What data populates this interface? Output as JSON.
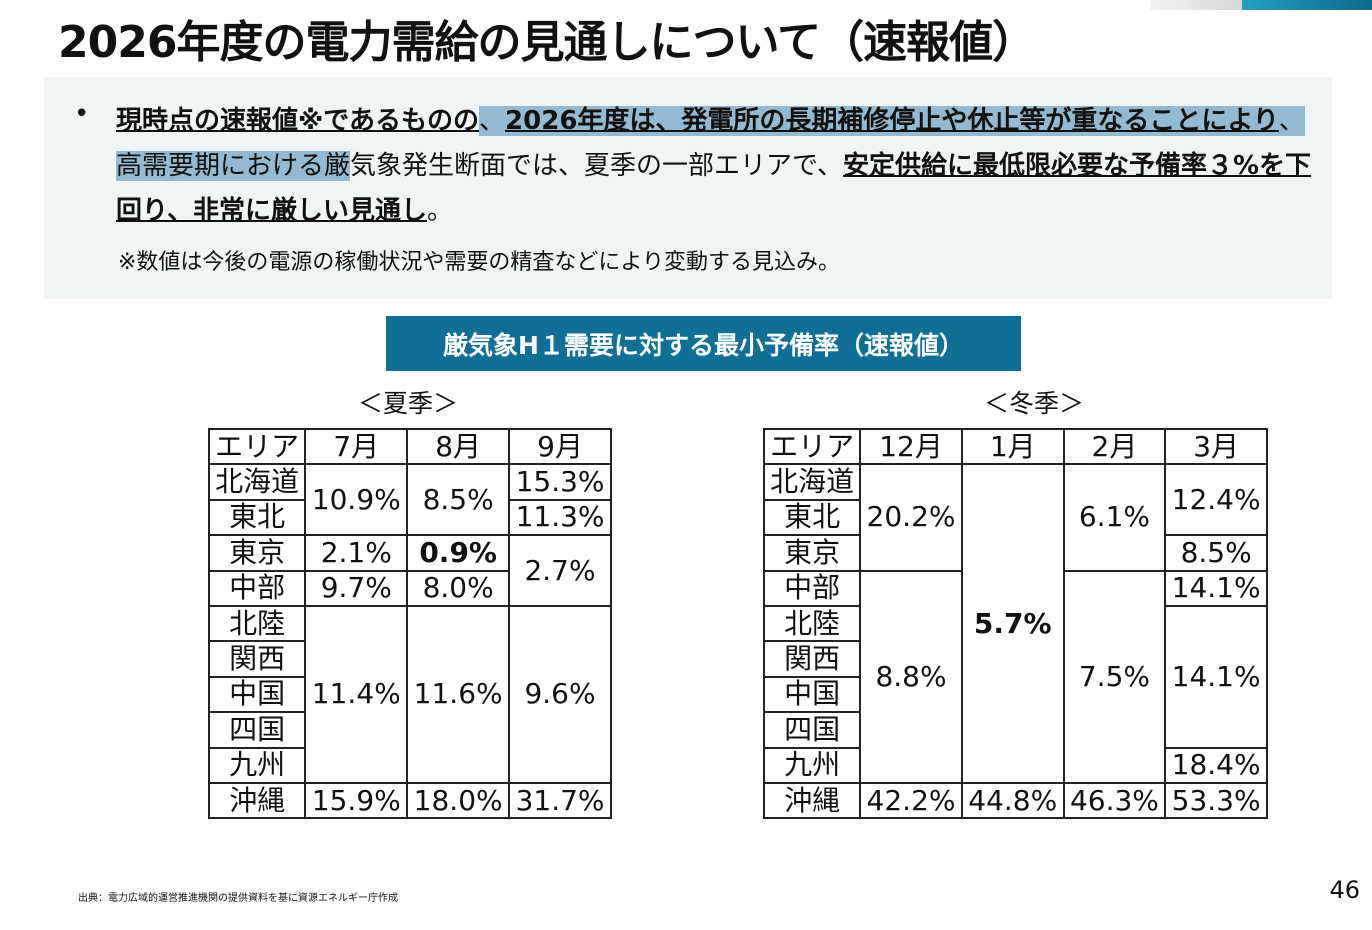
{
  "title": "2026年度の電力需給の見通しについて（速報値）",
  "summary": {
    "bullet": "•",
    "segments": [
      {
        "text": "現時点の速報値※であるものの",
        "style": "b"
      },
      {
        "text": "、",
        "style": "hl"
      },
      {
        "text": "2026年度は、発電所の長期補修停止や休止等が重なることにより",
        "style": "b hl"
      },
      {
        "text": "、高需要期における厳",
        "style": "hl"
      },
      {
        "text": "気象発生断面では、夏季の一部エリアで、",
        "style": ""
      },
      {
        "text": "安定供給に最低限必要な予備率３%を下回り、非常に厳しい見通し",
        "style": "b"
      },
      {
        "text": "。",
        "style": ""
      }
    ],
    "note": "※数値は今後の電源の稼働状況や需要の精査などにより変動する見込み。"
  },
  "banner": "厳気象H１需要に対する最小予備率（速報値）",
  "summer": {
    "label": "＜夏季＞",
    "headers": [
      "エリア",
      "7月",
      "8月",
      "9月"
    ],
    "rows": [
      [
        {
          "t": "北海道"
        },
        {
          "t": "10.9%",
          "rs": 2
        },
        {
          "t": "8.5%",
          "rs": 2
        },
        {
          "t": "15.3%"
        }
      ],
      [
        {
          "t": "東北"
        },
        {
          "t": "11.3%"
        }
      ],
      [
        {
          "t": "東京"
        },
        {
          "t": "2.1%"
        },
        {
          "t": "0.9%",
          "bold": true
        },
        {
          "t": "2.7%",
          "rs": 2
        }
      ],
      [
        {
          "t": "中部"
        },
        {
          "t": "9.7%"
        },
        {
          "t": "8.0%"
        }
      ],
      [
        {
          "t": "北陸"
        },
        {
          "t": "11.4%",
          "rs": 5
        },
        {
          "t": "11.6%",
          "rs": 5
        },
        {
          "t": "9.6%",
          "rs": 5
        }
      ],
      [
        {
          "t": "関西"
        }
      ],
      [
        {
          "t": "中国"
        }
      ],
      [
        {
          "t": "四国"
        }
      ],
      [
        {
          "t": "九州"
        }
      ],
      [
        {
          "t": "沖縄"
        },
        {
          "t": "15.9%"
        },
        {
          "t": "18.0%"
        },
        {
          "t": "31.7%"
        }
      ]
    ]
  },
  "winter": {
    "label": "＜冬季＞",
    "headers": [
      "エリア",
      "12月",
      "1月",
      "2月",
      "3月"
    ],
    "rows": [
      [
        {
          "t": "北海道"
        },
        {
          "t": "20.2%",
          "rs": 3
        },
        {
          "t": "5.7%",
          "rs": 9,
          "bold": true
        },
        {
          "t": "6.1%",
          "rs": 3
        },
        {
          "t": "12.4%",
          "rs": 2
        }
      ],
      [
        {
          "t": "東北"
        }
      ],
      [
        {
          "t": "東京"
        },
        {
          "t": "8.5%"
        }
      ],
      [
        {
          "t": "中部"
        },
        {
          "t": "8.8%",
          "rs": 6
        },
        {
          "t": "7.5%",
          "rs": 6
        },
        {
          "t": "14.1%"
        }
      ],
      [
        {
          "t": "北陸"
        },
        {
          "t": "14.1%",
          "rs": 4
        }
      ],
      [
        {
          "t": "関西"
        }
      ],
      [
        {
          "t": "中国"
        }
      ],
      [
        {
          "t": "四国"
        }
      ],
      [
        {
          "t": "九州"
        },
        {
          "t": "18.4%"
        }
      ],
      [
        {
          "t": "沖縄"
        },
        {
          "t": "42.2%"
        },
        {
          "t": "44.8%"
        },
        {
          "t": "46.3%"
        },
        {
          "t": "53.3%"
        }
      ]
    ]
  },
  "source": "出典：電力広域的運営推進機関の提供資料を基に資源エネルギー庁作成",
  "page_number": "46"
}
